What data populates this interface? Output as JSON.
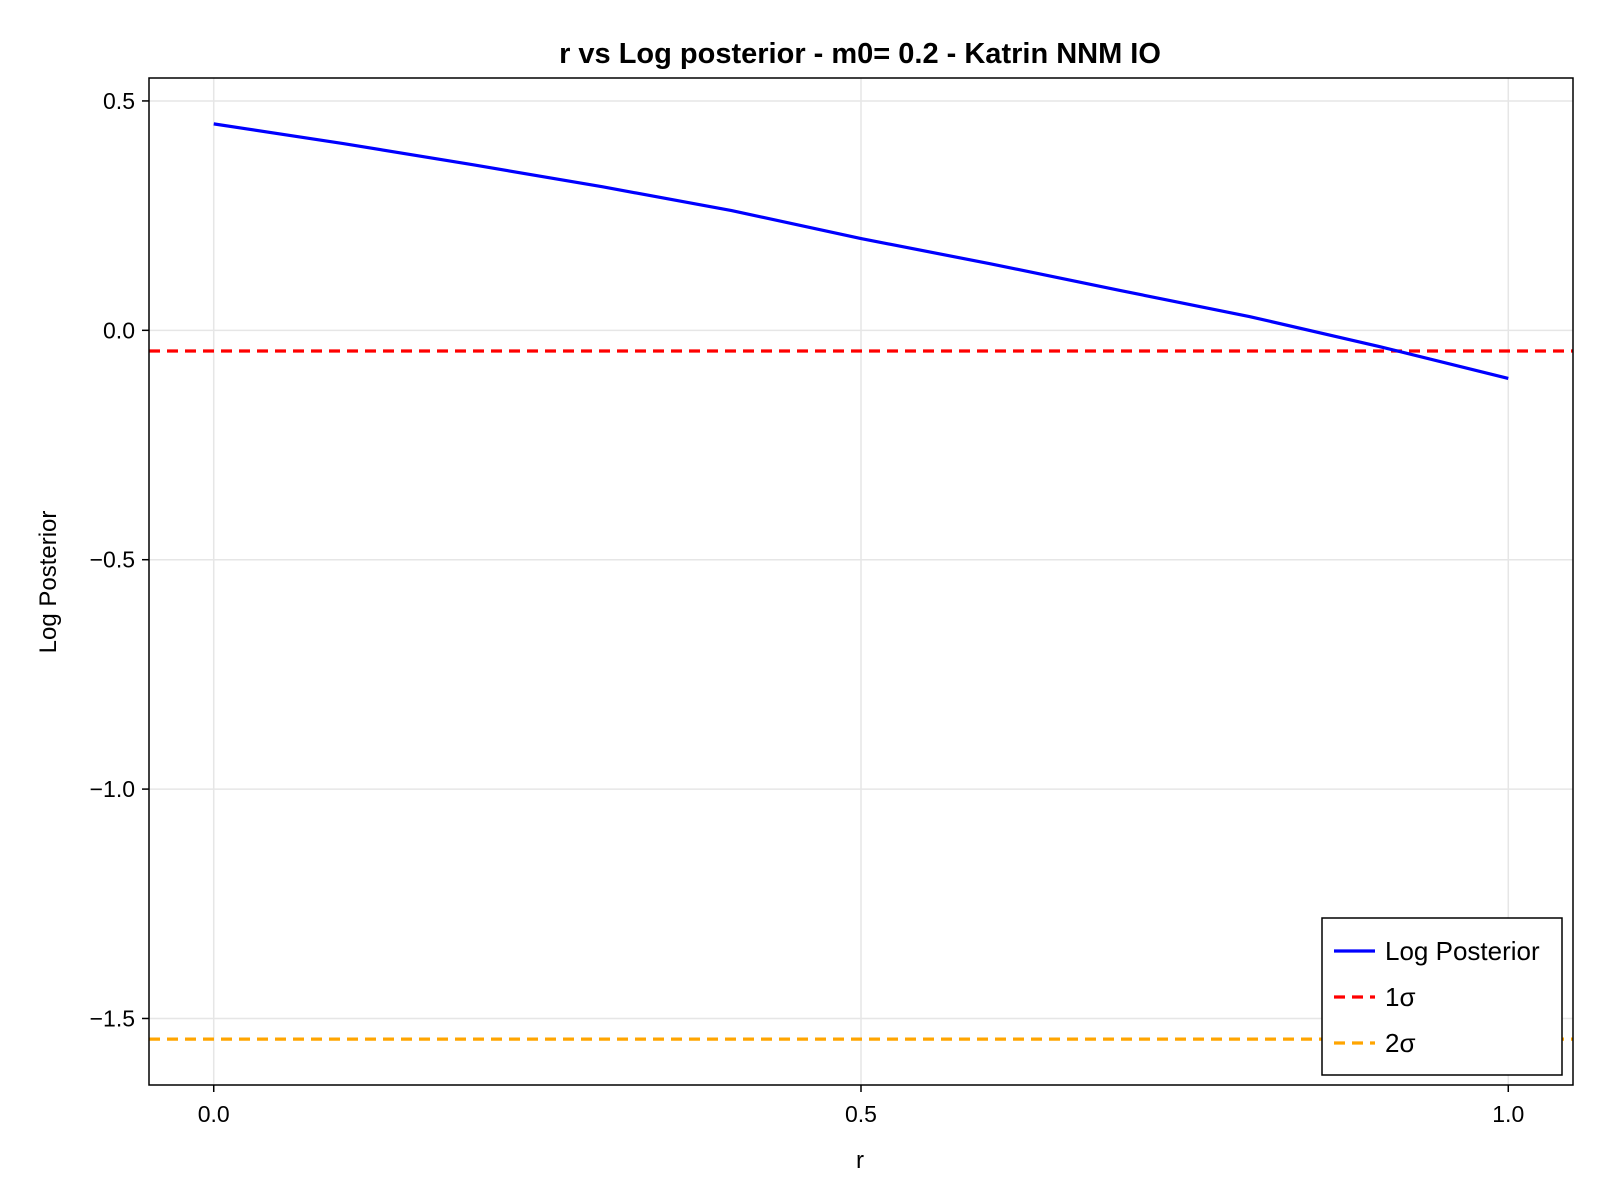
{
  "chart_data": {
    "type": "line",
    "title": "r vs Log posterior - m0= 0.2 - Katrin NNM IO",
    "xlabel": "r",
    "ylabel": "Log Posterior",
    "xlim": [
      -0.05,
      1.05
    ],
    "ylim": [
      -1.645,
      0.55
    ],
    "grid": true,
    "legend_position": "bottom-right",
    "xticks": [
      {
        "value": 0.0,
        "label": "0.0"
      },
      {
        "value": 0.5,
        "label": "0.5"
      },
      {
        "value": 1.0,
        "label": "1.0"
      }
    ],
    "yticks": [
      {
        "value": 0.5,
        "label": "0.5"
      },
      {
        "value": 0.0,
        "label": "0.0"
      },
      {
        "value": -0.5,
        "label": "−0.5"
      },
      {
        "value": -1.0,
        "label": "−1.0"
      },
      {
        "value": -1.5,
        "label": "−1.5"
      }
    ],
    "series": [
      {
        "name": "Log Posterior",
        "color": "#0000ff",
        "style": "solid",
        "x": [
          0.0,
          0.1,
          0.2,
          0.3,
          0.4,
          0.5,
          0.6,
          0.7,
          0.8,
          0.9,
          1.0
        ],
        "y": [
          0.45,
          0.407,
          0.361,
          0.313,
          0.261,
          0.2,
          0.145,
          0.087,
          0.03,
          -0.035,
          -0.105
        ]
      },
      {
        "name": "1σ",
        "color": "#ff0000",
        "style": "dashed",
        "hline": -0.045
      },
      {
        "name": "2σ",
        "color": "#ffa500",
        "style": "dashed",
        "hline": -1.545
      }
    ]
  }
}
